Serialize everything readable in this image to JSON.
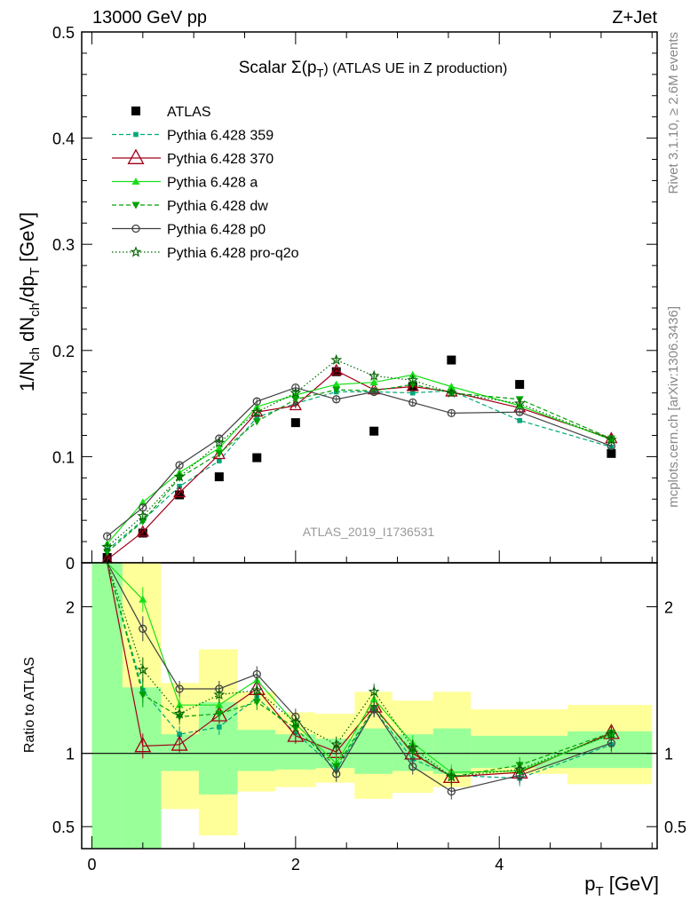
{
  "header": {
    "left": "13000 GeV pp",
    "right": "Z+Jet"
  },
  "side_labels": {
    "rivet": "Rivet 3.1.10, ≥ 2.6M events",
    "mcplots": "mcplots.cern.ch [arXiv:1306.3436]"
  },
  "watermark": "ATLAS_2019_I1736531",
  "colors": {
    "atlas": "#000000",
    "p359": "#00a87a",
    "p370": "#a00018",
    "pa": "#18e018",
    "pdw": "#00a000",
    "pp0": "#404040",
    "pq2o": "#006400",
    "band_inner": "#99ff99",
    "band_outer": "#ffff99"
  },
  "chart_data": [
    {
      "type": "line",
      "title": "Scalar Σ(pT) (ATLAS UE in Z production)",
      "title_main": "Scalar Σ(p",
      "title_sub": "T",
      "title_rest": ") (ATLAS UE in Z production)",
      "ylabel": "1/Nch dNch/dpT [GeV]",
      "xlim": [
        -0.1,
        5.55
      ],
      "ylim": [
        0,
        0.5
      ],
      "yticks": [
        0,
        0.1,
        0.2,
        0.3,
        0.4,
        0.5
      ],
      "ytick_labels": [
        "0",
        "0.1",
        "0.2",
        "0.3",
        "0.4",
        "0.5"
      ],
      "legend_position": "top-left",
      "x": [
        0.15,
        0.5,
        0.86,
        1.25,
        1.62,
        2.0,
        2.4,
        2.77,
        3.15,
        3.53,
        4.2,
        5.1
      ],
      "series": [
        {
          "key": "atlas",
          "name": "ATLAS",
          "values": [
            0.005,
            0.028,
            0.064,
            0.081,
            0.099,
            0.132,
            0.18,
            0.124,
            0.166,
            0.191,
            0.168,
            0.103
          ]
        },
        {
          "key": "p359",
          "name": "Pythia 6.428 359",
          "values": [
            0.012,
            0.04,
            0.072,
            0.096,
            0.137,
            0.15,
            0.161,
            0.161,
            0.16,
            0.162,
            0.134,
            0.109
          ]
        },
        {
          "key": "p370",
          "name": "Pythia 6.428 370",
          "values": [
            0.003,
            0.029,
            0.066,
            0.102,
            0.142,
            0.148,
            0.181,
            0.163,
            0.166,
            0.161,
            0.146,
            0.117
          ]
        },
        {
          "key": "pa",
          "name": "Pythia 6.428 a",
          "values": [
            0.018,
            0.057,
            0.085,
            0.108,
            0.147,
            0.158,
            0.168,
            0.17,
            0.177,
            0.166,
            0.148,
            0.116
          ]
        },
        {
          "key": "pdw",
          "name": "Pythia 6.428 dw",
          "values": [
            0.01,
            0.039,
            0.08,
            0.103,
            0.133,
            0.154,
            0.163,
            0.162,
            0.168,
            0.16,
            0.154,
            0.117
          ]
        },
        {
          "key": "pp0",
          "name": "Pythia 6.428 p0",
          "values": [
            0.025,
            0.052,
            0.092,
            0.117,
            0.152,
            0.165,
            0.154,
            0.161,
            0.151,
            0.141,
            0.142,
            0.11
          ]
        },
        {
          "key": "pq2o",
          "name": "Pythia 6.428 pro-q2o",
          "values": [
            0.015,
            0.044,
            0.081,
            0.113,
            0.142,
            0.16,
            0.191,
            0.176,
            0.172,
            0.16,
            0.15,
            0.116
          ]
        }
      ]
    },
    {
      "type": "line",
      "ylabel": "Ratio to ATLAS",
      "xlabel": "pT [GeV]",
      "xlabel_main": "p",
      "xlabel_sub": "T",
      "xlabel_rest": " [GeV]",
      "xlim": [
        -0.1,
        5.55
      ],
      "ylim": [
        0.35,
        2.3
      ],
      "xticks": [
        0,
        2,
        4
      ],
      "xtick_labels": [
        "0",
        "2",
        "4"
      ],
      "yticks": [
        0.5,
        1,
        2
      ],
      "ytick_labels": [
        "0.5",
        "1",
        "2"
      ],
      "bands": {
        "edges": [
          0.0,
          0.3,
          0.68,
          1.05,
          1.43,
          1.8,
          2.2,
          2.58,
          2.95,
          3.35,
          3.72,
          4.67,
          5.5
        ],
        "inner_lo": [
          0.35,
          0.35,
          0.88,
          0.72,
          0.88,
          0.89,
          0.9,
          0.86,
          0.88,
          0.86,
          0.9,
          0.9
        ],
        "inner_hi": [
          2.3,
          1.45,
          1.13,
          1.35,
          1.16,
          1.13,
          1.1,
          1.17,
          1.13,
          1.17,
          1.12,
          1.15
        ],
        "outer_lo": [
          0.35,
          0.67,
          0.62,
          0.44,
          0.74,
          0.77,
          0.8,
          0.69,
          0.73,
          0.77,
          0.86,
          0.79
        ],
        "outer_hi": [
          2.3,
          2.3,
          1.48,
          1.71,
          1.42,
          1.28,
          1.27,
          1.42,
          1.36,
          1.42,
          1.3,
          1.33
        ]
      },
      "x": [
        0.15,
        0.5,
        0.86,
        1.25,
        1.62,
        2.0,
        2.4,
        2.77,
        3.15,
        3.53,
        4.2,
        5.1
      ],
      "series": [
        {
          "key": "p359",
          "values": [
            2.4,
            1.43,
            1.13,
            1.18,
            1.38,
            1.14,
            0.89,
            1.3,
            0.96,
            0.85,
            0.83,
            1.06
          ]
        },
        {
          "key": "p370",
          "values": [
            2.4,
            1.05,
            1.06,
            1.26,
            1.44,
            1.12,
            1.01,
            1.32,
            1.0,
            0.84,
            0.87,
            1.14
          ]
        },
        {
          "key": "pa",
          "values": [
            2.4,
            2.05,
            1.33,
            1.33,
            1.5,
            1.2,
            0.93,
            1.37,
            1.07,
            0.87,
            0.88,
            1.13
          ]
        },
        {
          "key": "pdw",
          "values": [
            2.4,
            1.4,
            1.25,
            1.27,
            1.35,
            1.17,
            0.91,
            1.31,
            1.01,
            0.84,
            0.92,
            1.14
          ]
        },
        {
          "key": "pp0",
          "values": [
            2.4,
            1.85,
            1.44,
            1.44,
            1.54,
            1.25,
            0.86,
            1.3,
            0.91,
            0.74,
            0.85,
            1.07
          ]
        },
        {
          "key": "pq2o",
          "values": [
            2.4,
            1.57,
            1.27,
            1.4,
            1.43,
            1.21,
            1.06,
            1.42,
            1.04,
            0.84,
            0.89,
            1.13
          ]
        }
      ]
    }
  ]
}
